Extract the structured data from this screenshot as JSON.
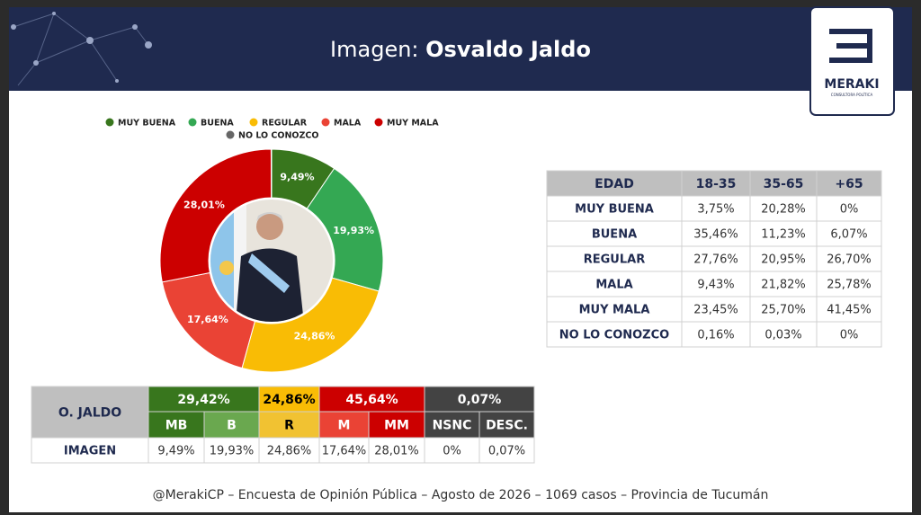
{
  "header": {
    "title_prefix": "Imagen: ",
    "title_name": "Osvaldo Jaldo",
    "logo": "MERAKI",
    "logo_subtitle": "CONSULTORA POLÍTICA"
  },
  "chart_data": {
    "type": "donut",
    "categories": [
      "MUY BUENA",
      "BUENA",
      "REGULAR",
      "MALA",
      "MUY MALA",
      "NO LO CONOZCO"
    ],
    "values": [
      9.49,
      19.93,
      24.86,
      17.64,
      28.01,
      0.07
    ],
    "value_labels": [
      "9,49%",
      "19,93%",
      "24,86%",
      "17,64%",
      "28,01%",
      null
    ],
    "colors": [
      "#38761d",
      "#34a853",
      "#f9bc05",
      "#ea4335",
      "#cc0000",
      "#666666"
    ]
  },
  "age_table": {
    "header": [
      "EDAD",
      "18-35",
      "35-65",
      "+65"
    ],
    "rows": [
      [
        "MUY BUENA",
        "3,75%",
        "20,28%",
        "0%"
      ],
      [
        "BUENA",
        "35,46%",
        "11,23%",
        "6,07%"
      ],
      [
        "REGULAR",
        "27,76%",
        "20,95%",
        "26,70%"
      ],
      [
        "MALA",
        "9,43%",
        "21,82%",
        "25,78%"
      ],
      [
        "MUY MALA",
        "23,45%",
        "25,70%",
        "41,45%"
      ],
      [
        "NO LO CONOZCO",
        "0,16%",
        "0,03%",
        "0%"
      ]
    ]
  },
  "summary_table": {
    "title": "O. JALDO",
    "groups": [
      {
        "label": "29,42%",
        "color": "#38761d"
      },
      {
        "label": "24,86%",
        "color": "#f9bc05"
      },
      {
        "label": "45,64%",
        "color": "#cc0000"
      },
      {
        "label": "0,07%",
        "color": "#434343"
      }
    ],
    "columns": [
      {
        "label": "MB",
        "color": "#38761d"
      },
      {
        "label": "B",
        "color": "#6aa84f"
      },
      {
        "label": "R",
        "color": "#f1c232"
      },
      {
        "label": "M",
        "color": "#ea4335"
      },
      {
        "label": "MM",
        "color": "#cc0000"
      },
      {
        "label": "NSNC",
        "color": "#434343"
      },
      {
        "label": "DESC.",
        "color": "#434343"
      }
    ],
    "row_label": "IMAGEN",
    "values": [
      "9,49%",
      "19,93%",
      "24,86%",
      "17,64%",
      "28,01%",
      "0%",
      "0,07%"
    ]
  },
  "footer": "@MerakiCP – Encuesta de Opinión Pública – Agosto de 2026 – 1069 casos – Provincia de Tucumán"
}
